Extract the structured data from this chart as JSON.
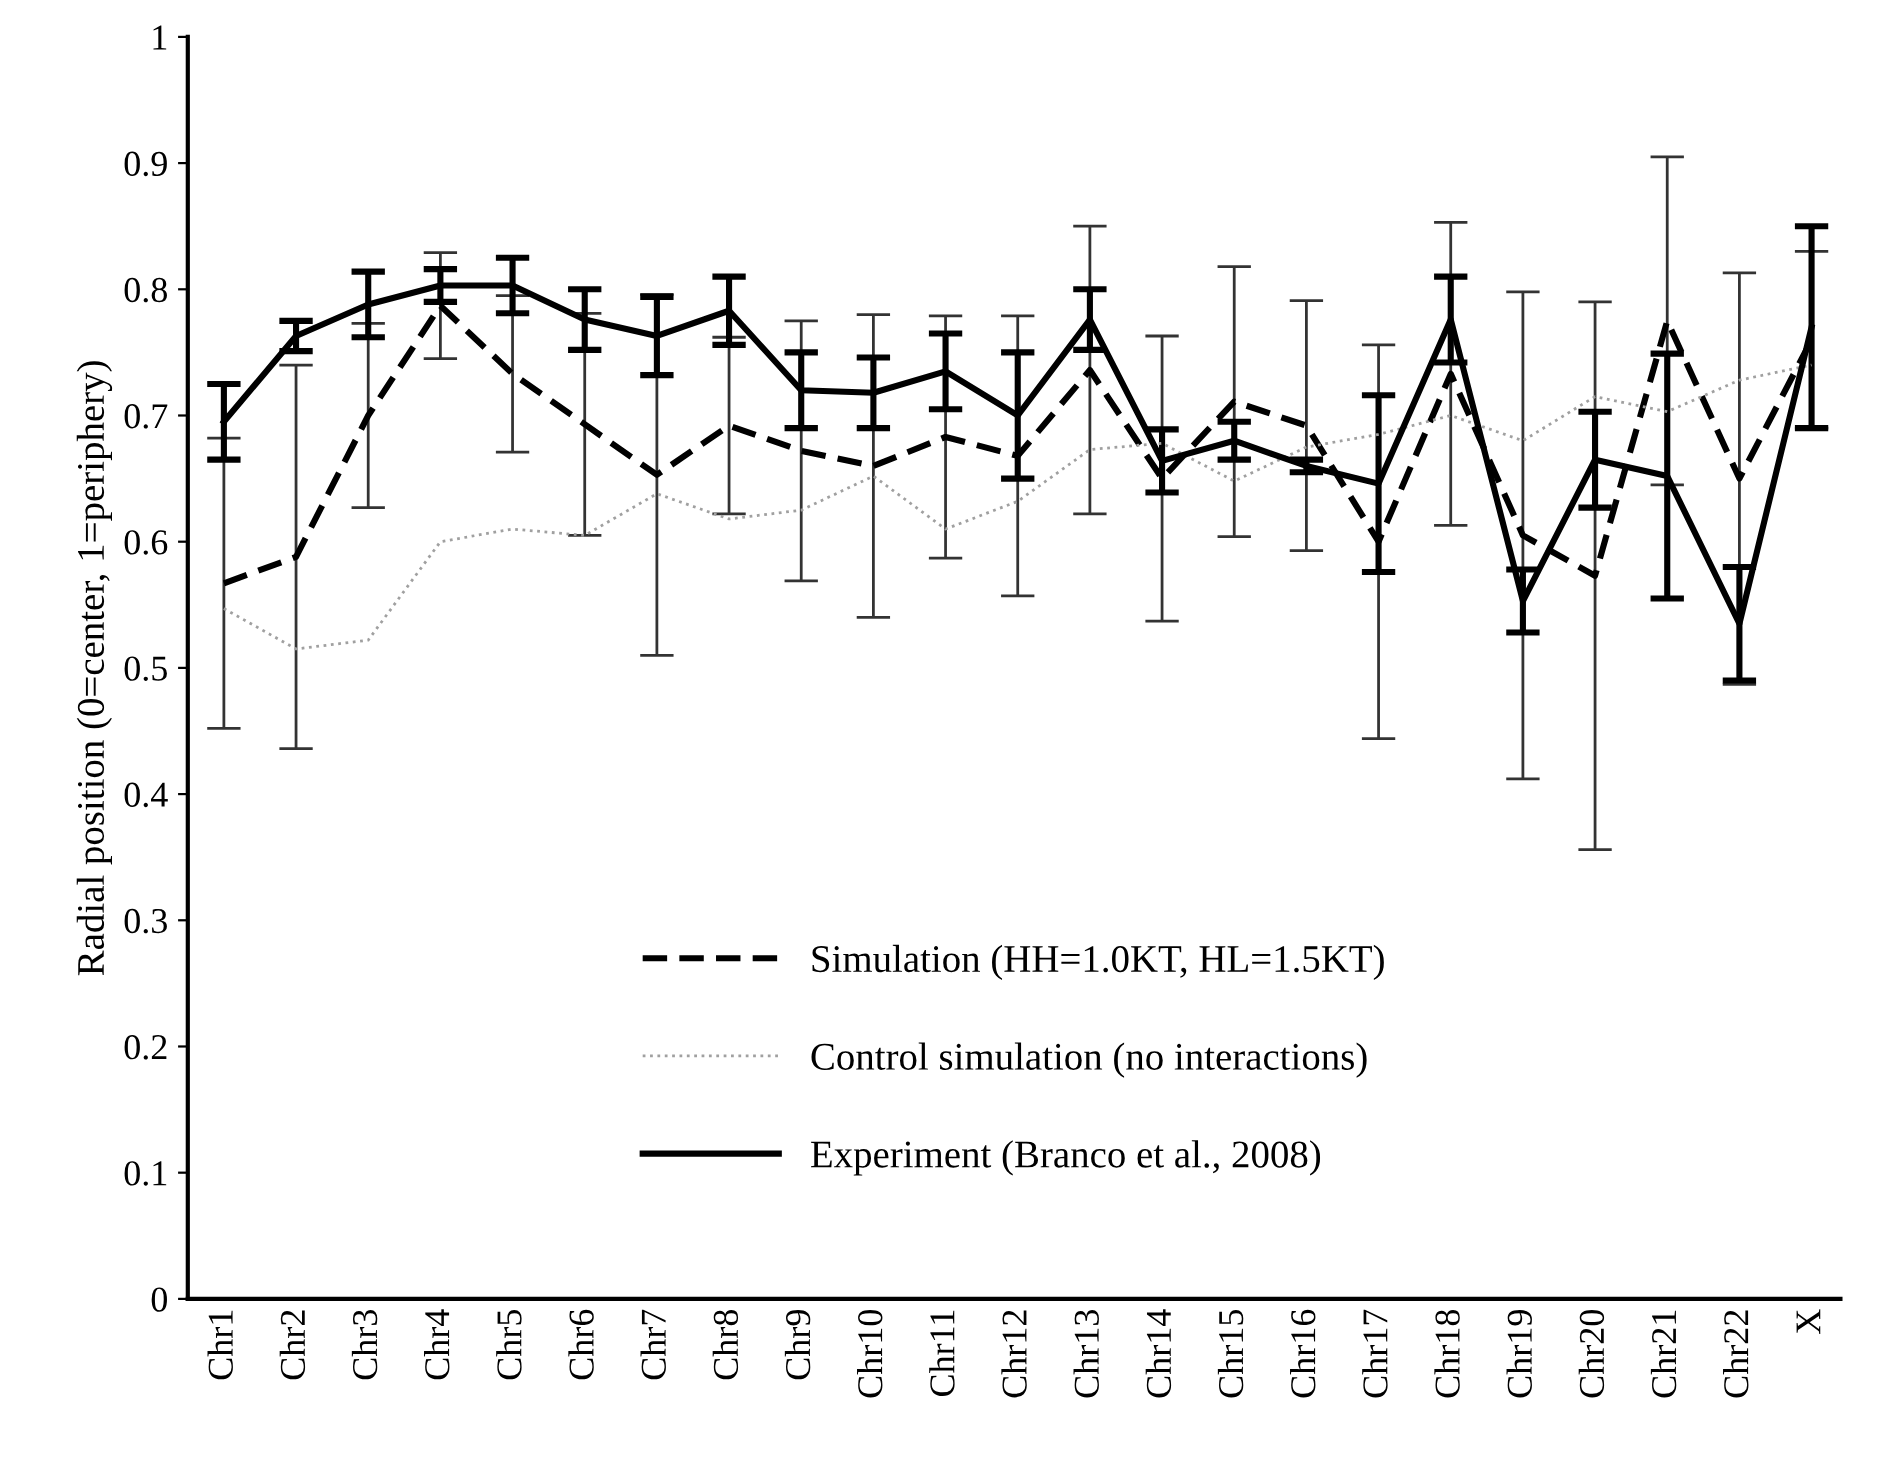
{
  "chart_data": {
    "type": "line",
    "ylabel": "Radial position (0=center, 1=periphery)",
    "categories": [
      "Chr1",
      "Chr2",
      "Chr3",
      "Chr4",
      "Chr5",
      "Chr6",
      "Chr7",
      "Chr8",
      "Chr9",
      "Chr10",
      "Chr11",
      "Chr12",
      "Chr13",
      "Chr14",
      "Chr15",
      "Chr16",
      "Chr17",
      "Chr18",
      "Chr19",
      "Chr20",
      "Chr21",
      "Chr22",
      "X"
    ],
    "ylim": [
      0,
      1
    ],
    "yticks": [
      0,
      0.1,
      0.2,
      0.3,
      0.4,
      0.5,
      0.6,
      0.7,
      0.8,
      0.9,
      1
    ],
    "grid": false,
    "legend": "bottom",
    "marker": "none",
    "series": [
      {
        "name": "Simulation (HH=1.0KT, HL=1.5KT)",
        "color": "#000000",
        "line_style": "dashed",
        "values": [
          0.567,
          0.588,
          0.7,
          0.787,
          0.733,
          0.693,
          0.653,
          0.692,
          0.672,
          0.66,
          0.683,
          0.668,
          0.736,
          0.65,
          0.711,
          0.692,
          0.6,
          0.733,
          0.605,
          0.573,
          0.775,
          0.65,
          0.76
        ],
        "errors": [
          0.115,
          0.152,
          0.073,
          0.042,
          0.062,
          0.088,
          0.143,
          0.07,
          0.103,
          0.12,
          0.096,
          0.111,
          0.114,
          0.113,
          0.107,
          0.099,
          0.156,
          0.12,
          0.193,
          0.217,
          0.13,
          0.163,
          0.07
        ]
      },
      {
        "name": "Control simulation (no interactions)",
        "color": "#a0a0a0",
        "line_style": "dotted",
        "values": [
          0.547,
          0.515,
          0.522,
          0.6,
          0.61,
          0.605,
          0.638,
          0.618,
          0.625,
          0.652,
          0.61,
          0.632,
          0.673,
          0.678,
          0.648,
          0.675,
          0.685,
          0.7,
          0.68,
          0.715,
          0.703,
          0.728,
          0.74
        ]
      },
      {
        "name": "Experiment (Branco et al., 2008)",
        "color": "#000000",
        "line_style": "solid",
        "values": [
          0.695,
          0.763,
          0.788,
          0.803,
          0.803,
          0.776,
          0.763,
          0.783,
          0.72,
          0.718,
          0.735,
          0.7,
          0.776,
          0.664,
          0.68,
          0.66,
          0.646,
          0.776,
          0.553,
          0.665,
          0.652,
          0.535,
          0.77
        ],
        "errors": [
          0.03,
          0.012,
          0.026,
          0.013,
          0.022,
          0.024,
          0.031,
          0.027,
          0.03,
          0.028,
          0.03,
          0.05,
          0.024,
          0.025,
          0.015,
          0.005,
          0.07,
          0.034,
          0.025,
          0.038,
          0.097,
          0.045,
          0.08
        ]
      }
    ]
  }
}
